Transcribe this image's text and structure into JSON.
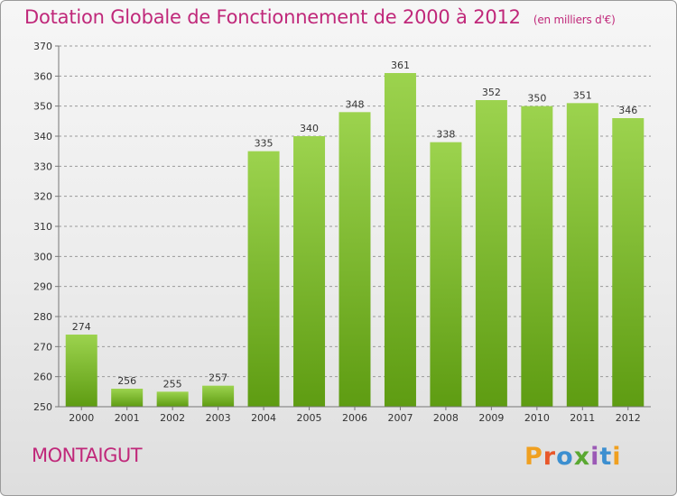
{
  "header": {
    "title": "Dotation Globale de Fonctionnement de 2000 à 2012",
    "subtitle": "(en milliers d'€)"
  },
  "footer": {
    "commune": "MONTAIGUT",
    "logo_letters": [
      "P",
      "r",
      "o",
      "x",
      "i",
      "t",
      "i"
    ],
    "logo_colors": [
      "#f0a020",
      "#e8572a",
      "#3c8fd0",
      "#5aa832",
      "#9b59b6",
      "#3c8fd0",
      "#f0a020"
    ]
  },
  "colors": {
    "title": "#c0287a",
    "bar_top": "#9cd34e",
    "bar_bottom": "#5e9c12",
    "grid": "#9a9a9a"
  },
  "chart_data": {
    "type": "bar",
    "title": "Dotation Globale de Fonctionnement de 2000 à 2012",
    "subtitle": "(en milliers d'€)",
    "categories": [
      "2000",
      "2001",
      "2002",
      "2003",
      "2004",
      "2005",
      "2006",
      "2007",
      "2008",
      "2009",
      "2010",
      "2011",
      "2012"
    ],
    "values": [
      274,
      256,
      255,
      257,
      335,
      340,
      348,
      361,
      338,
      352,
      350,
      351,
      346
    ],
    "ylim": [
      250,
      370
    ],
    "yticks": [
      250,
      260,
      270,
      280,
      290,
      300,
      310,
      320,
      330,
      340,
      350,
      360,
      370
    ],
    "grid": "horizontal dashed",
    "data_labels": true
  }
}
